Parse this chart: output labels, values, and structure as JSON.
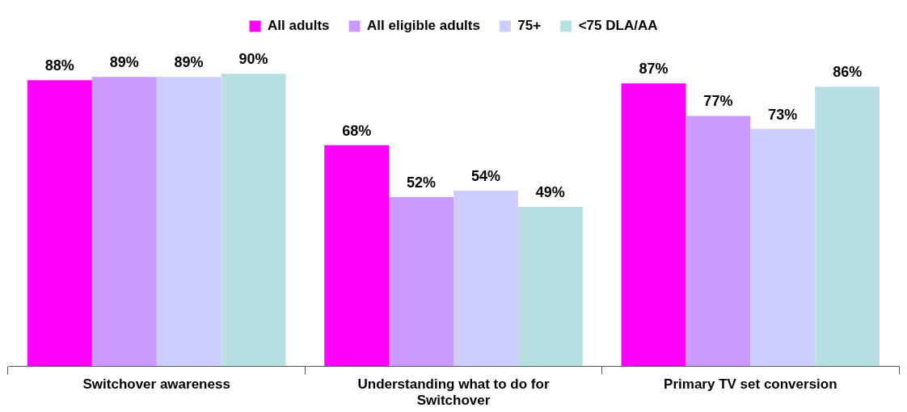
{
  "chart_data": {
    "type": "bar",
    "categories": [
      "Switchover awareness",
      "Understanding what to do for Switchover",
      "Primary TV set conversion"
    ],
    "series": [
      {
        "name": "All adults",
        "color": "#ff00ff",
        "values": [
          88,
          68,
          87
        ],
        "value_labels": [
          "88%",
          "68%",
          "87%"
        ]
      },
      {
        "name": "All eligible adults",
        "color": "#cc99ff",
        "values": [
          89,
          52,
          77
        ],
        "value_labels": [
          "89%",
          "52%",
          "77%"
        ]
      },
      {
        "name": "75+",
        "color": "#ccccff",
        "values": [
          89,
          54,
          73
        ],
        "value_labels": [
          "89%",
          "54%",
          "73%"
        ]
      },
      {
        "name": "<75 DLA/AA",
        "color": "#b8e0e0",
        "values": [
          90,
          49,
          86
        ],
        "value_labels": [
          "90%",
          "49%",
          "86%"
        ]
      }
    ],
    "legend": "top",
    "grid": false,
    "tick_labels": "x"
  }
}
